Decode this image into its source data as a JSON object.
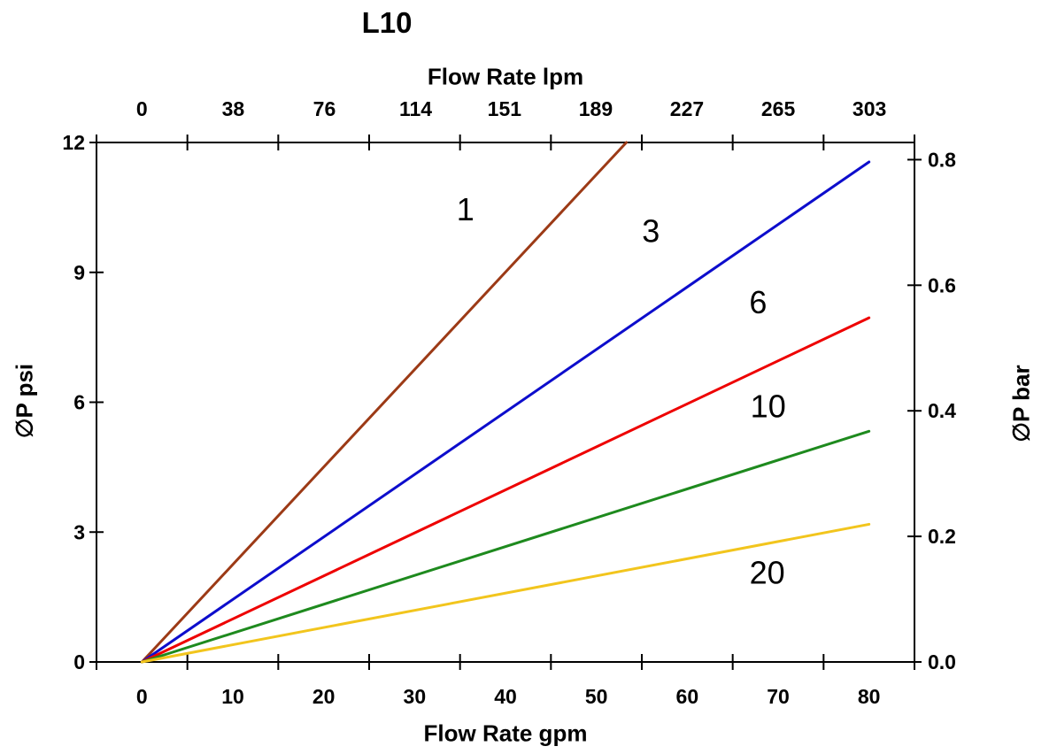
{
  "chart_data": {
    "type": "line",
    "title": "L10",
    "top_axis": {
      "label": "Flow Rate lpm",
      "tick_labels": [
        "0",
        "38",
        "76",
        "114",
        "151",
        "189",
        "227",
        "265",
        "303"
      ],
      "tick_values_lpm": [
        0,
        38,
        76,
        114,
        151,
        189,
        227,
        265,
        303
      ]
    },
    "bottom_axis": {
      "label": "Flow Rate gpm",
      "tick_labels": [
        "0",
        "10",
        "20",
        "30",
        "40",
        "50",
        "60",
        "70",
        "80"
      ],
      "tick_values_gpm": [
        0,
        10,
        20,
        30,
        40,
        50,
        60,
        70,
        80
      ],
      "range_gpm": [
        -5,
        85
      ],
      "tick_marks_gpm": [
        -5,
        5,
        15,
        25,
        35,
        45,
        55,
        65,
        75,
        85
      ]
    },
    "left_axis": {
      "label": "∅P psi",
      "tick_labels": [
        "0",
        "3",
        "6",
        "9",
        "12"
      ],
      "tick_values_psi": [
        0,
        3,
        6,
        9,
        12
      ],
      "range_psi": [
        0,
        12
      ]
    },
    "right_axis": {
      "label": "∅P bar",
      "tick_labels": [
        "0.0",
        "0.2",
        "0.4",
        "0.6",
        "0.8"
      ],
      "tick_values_bar": [
        0.0,
        0.2,
        0.4,
        0.6,
        0.8
      ]
    },
    "series": [
      {
        "name": "1",
        "color": "#9C3A16",
        "points_gpm_psi": [
          [
            0,
            0
          ],
          [
            53.3,
            12.0
          ]
        ],
        "label_at_gpm_psi": [
          35.6,
          10.45
        ]
      },
      {
        "name": "3",
        "color": "#0D0DCC",
        "points_gpm_psi": [
          [
            0,
            0
          ],
          [
            80.0,
            11.55
          ]
        ],
        "label_at_gpm_psi": [
          56.0,
          9.95
        ]
      },
      {
        "name": "6",
        "color": "#EE0000",
        "points_gpm_psi": [
          [
            0,
            0
          ],
          [
            80.0,
            7.95
          ]
        ],
        "label_at_gpm_psi": [
          67.8,
          8.3
        ]
      },
      {
        "name": "10",
        "color": "#1E8A1E",
        "points_gpm_psi": [
          [
            0,
            0
          ],
          [
            80.0,
            5.33
          ]
        ],
        "label_at_gpm_psi": [
          68.9,
          5.9
        ]
      },
      {
        "name": "20",
        "color": "#F2C51D",
        "points_gpm_psi": [
          [
            0,
            0
          ],
          [
            80.0,
            3.18
          ]
        ],
        "label_at_gpm_psi": [
          68.8,
          2.05
        ]
      }
    ],
    "axis_color": "#000000",
    "background_color": "#FFFFFF"
  }
}
